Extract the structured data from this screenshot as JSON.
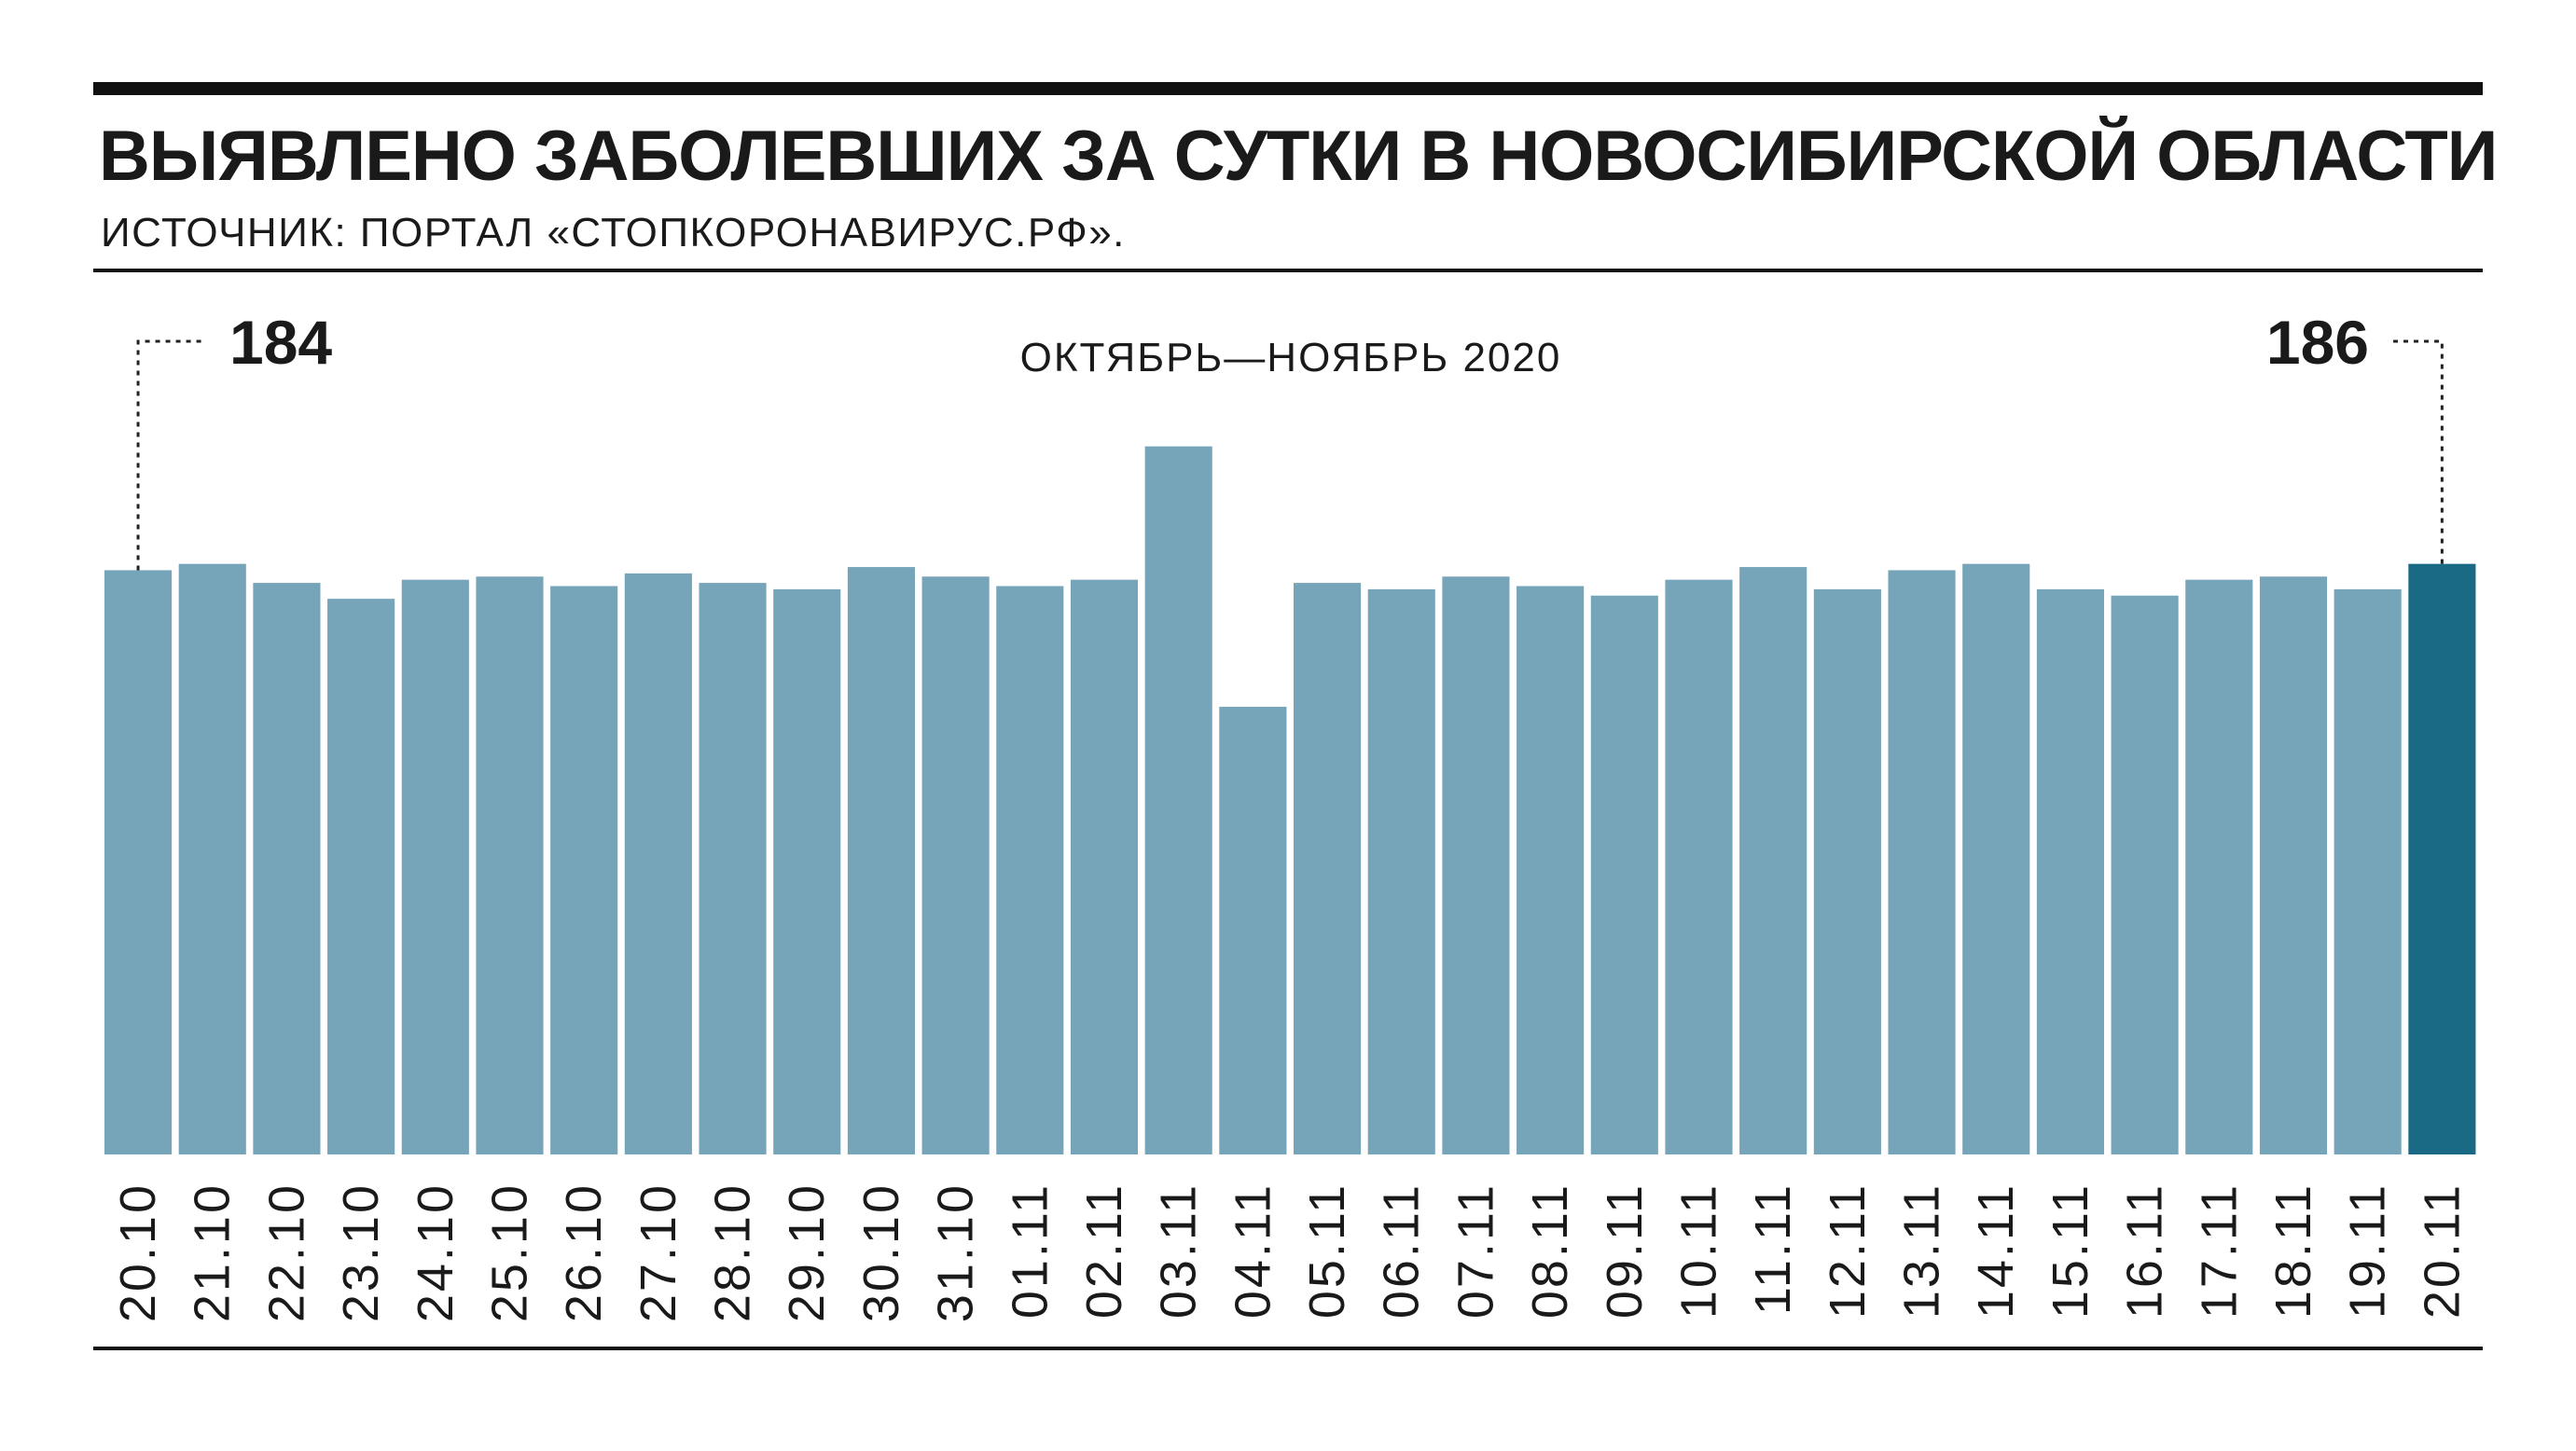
{
  "header": {
    "title_regular": "ВЫЯВЛЕНО ЗАБОЛЕВШИХ ЗА СУТКИ В ",
    "title_bold": "НОВОСИБИРСКОЙ ОБЛАСТИ",
    "source": "ИСТОЧНИК: ПОРТАЛ «СТОПКОРОНАВИРУС.РФ»."
  },
  "colors": {
    "bar": "#76a4b8",
    "highlight_bar": "#1a6a85",
    "text": "#1a1a1a"
  },
  "chart_data": {
    "type": "bar",
    "subtitle": "ОКТЯБРЬ—НОЯБРЬ 2020",
    "categories": [
      "20.10",
      "21.10",
      "22.10",
      "23.10",
      "24.10",
      "25.10",
      "26.10",
      "27.10",
      "28.10",
      "29.10",
      "30.10",
      "31.10",
      "01.11",
      "02.11",
      "03.11",
      "04.11",
      "05.11",
      "06.11",
      "07.11",
      "08.11",
      "09.11",
      "10.11",
      "11.11",
      "12.11",
      "13.11",
      "14.11",
      "15.11",
      "16.11",
      "17.11",
      "18.11",
      "19.11",
      "20.11"
    ],
    "values": [
      184,
      186,
      180,
      175,
      181,
      182,
      179,
      183,
      180,
      178,
      185,
      182,
      179,
      181,
      223,
      141,
      180,
      178,
      182,
      179,
      176,
      181,
      185,
      178,
      184,
      186,
      178,
      176,
      181,
      182,
      178,
      186
    ],
    "highlight_index": 31,
    "annotations": [
      {
        "index": 0,
        "label": "184"
      },
      {
        "index": 31,
        "label": "186"
      }
    ],
    "ylim": [
      0,
      230
    ],
    "xlabel": "",
    "ylabel": "",
    "grid": false
  }
}
